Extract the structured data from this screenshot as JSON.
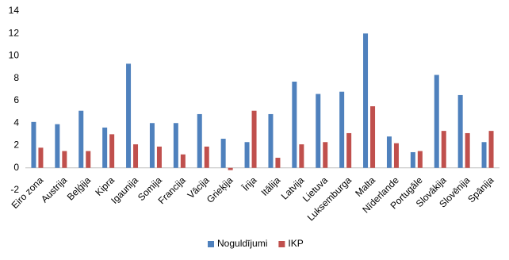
{
  "chart_data": {
    "type": "bar",
    "categories": [
      "Eiro zona",
      "Austrija",
      "Beļģija",
      "Kipra",
      "Igaunija",
      "Somija",
      "Francija",
      "Vācija",
      "Grieķija",
      "Īrija",
      "Itālija",
      "Latvija",
      "Lietuva",
      "Luksemburga",
      "Malta",
      "Nīderlande",
      "Portugāle",
      "Slovākija",
      "Slovēnija",
      "Spānija"
    ],
    "series": [
      {
        "name": "Noguldījumi",
        "color": "#4f81bd",
        "values": [
          4.1,
          3.9,
          5.1,
          3.6,
          9.3,
          4.0,
          4.0,
          4.8,
          2.6,
          2.3,
          4.8,
          7.7,
          6.6,
          6.8,
          12.0,
          2.8,
          1.4,
          8.3,
          6.5,
          2.3
        ]
      },
      {
        "name": "IKP",
        "color": "#c0504d",
        "values": [
          1.8,
          1.5,
          1.5,
          3.0,
          2.1,
          1.9,
          1.2,
          1.9,
          -0.2,
          5.1,
          0.9,
          2.1,
          2.3,
          3.1,
          5.5,
          2.2,
          1.5,
          3.3,
          3.1,
          3.3
        ]
      }
    ],
    "ylim": [
      -2,
      14
    ],
    "yticks": [
      -2,
      0,
      2,
      4,
      6,
      8,
      10,
      12,
      14
    ],
    "grid": false,
    "legend": "bottom"
  }
}
